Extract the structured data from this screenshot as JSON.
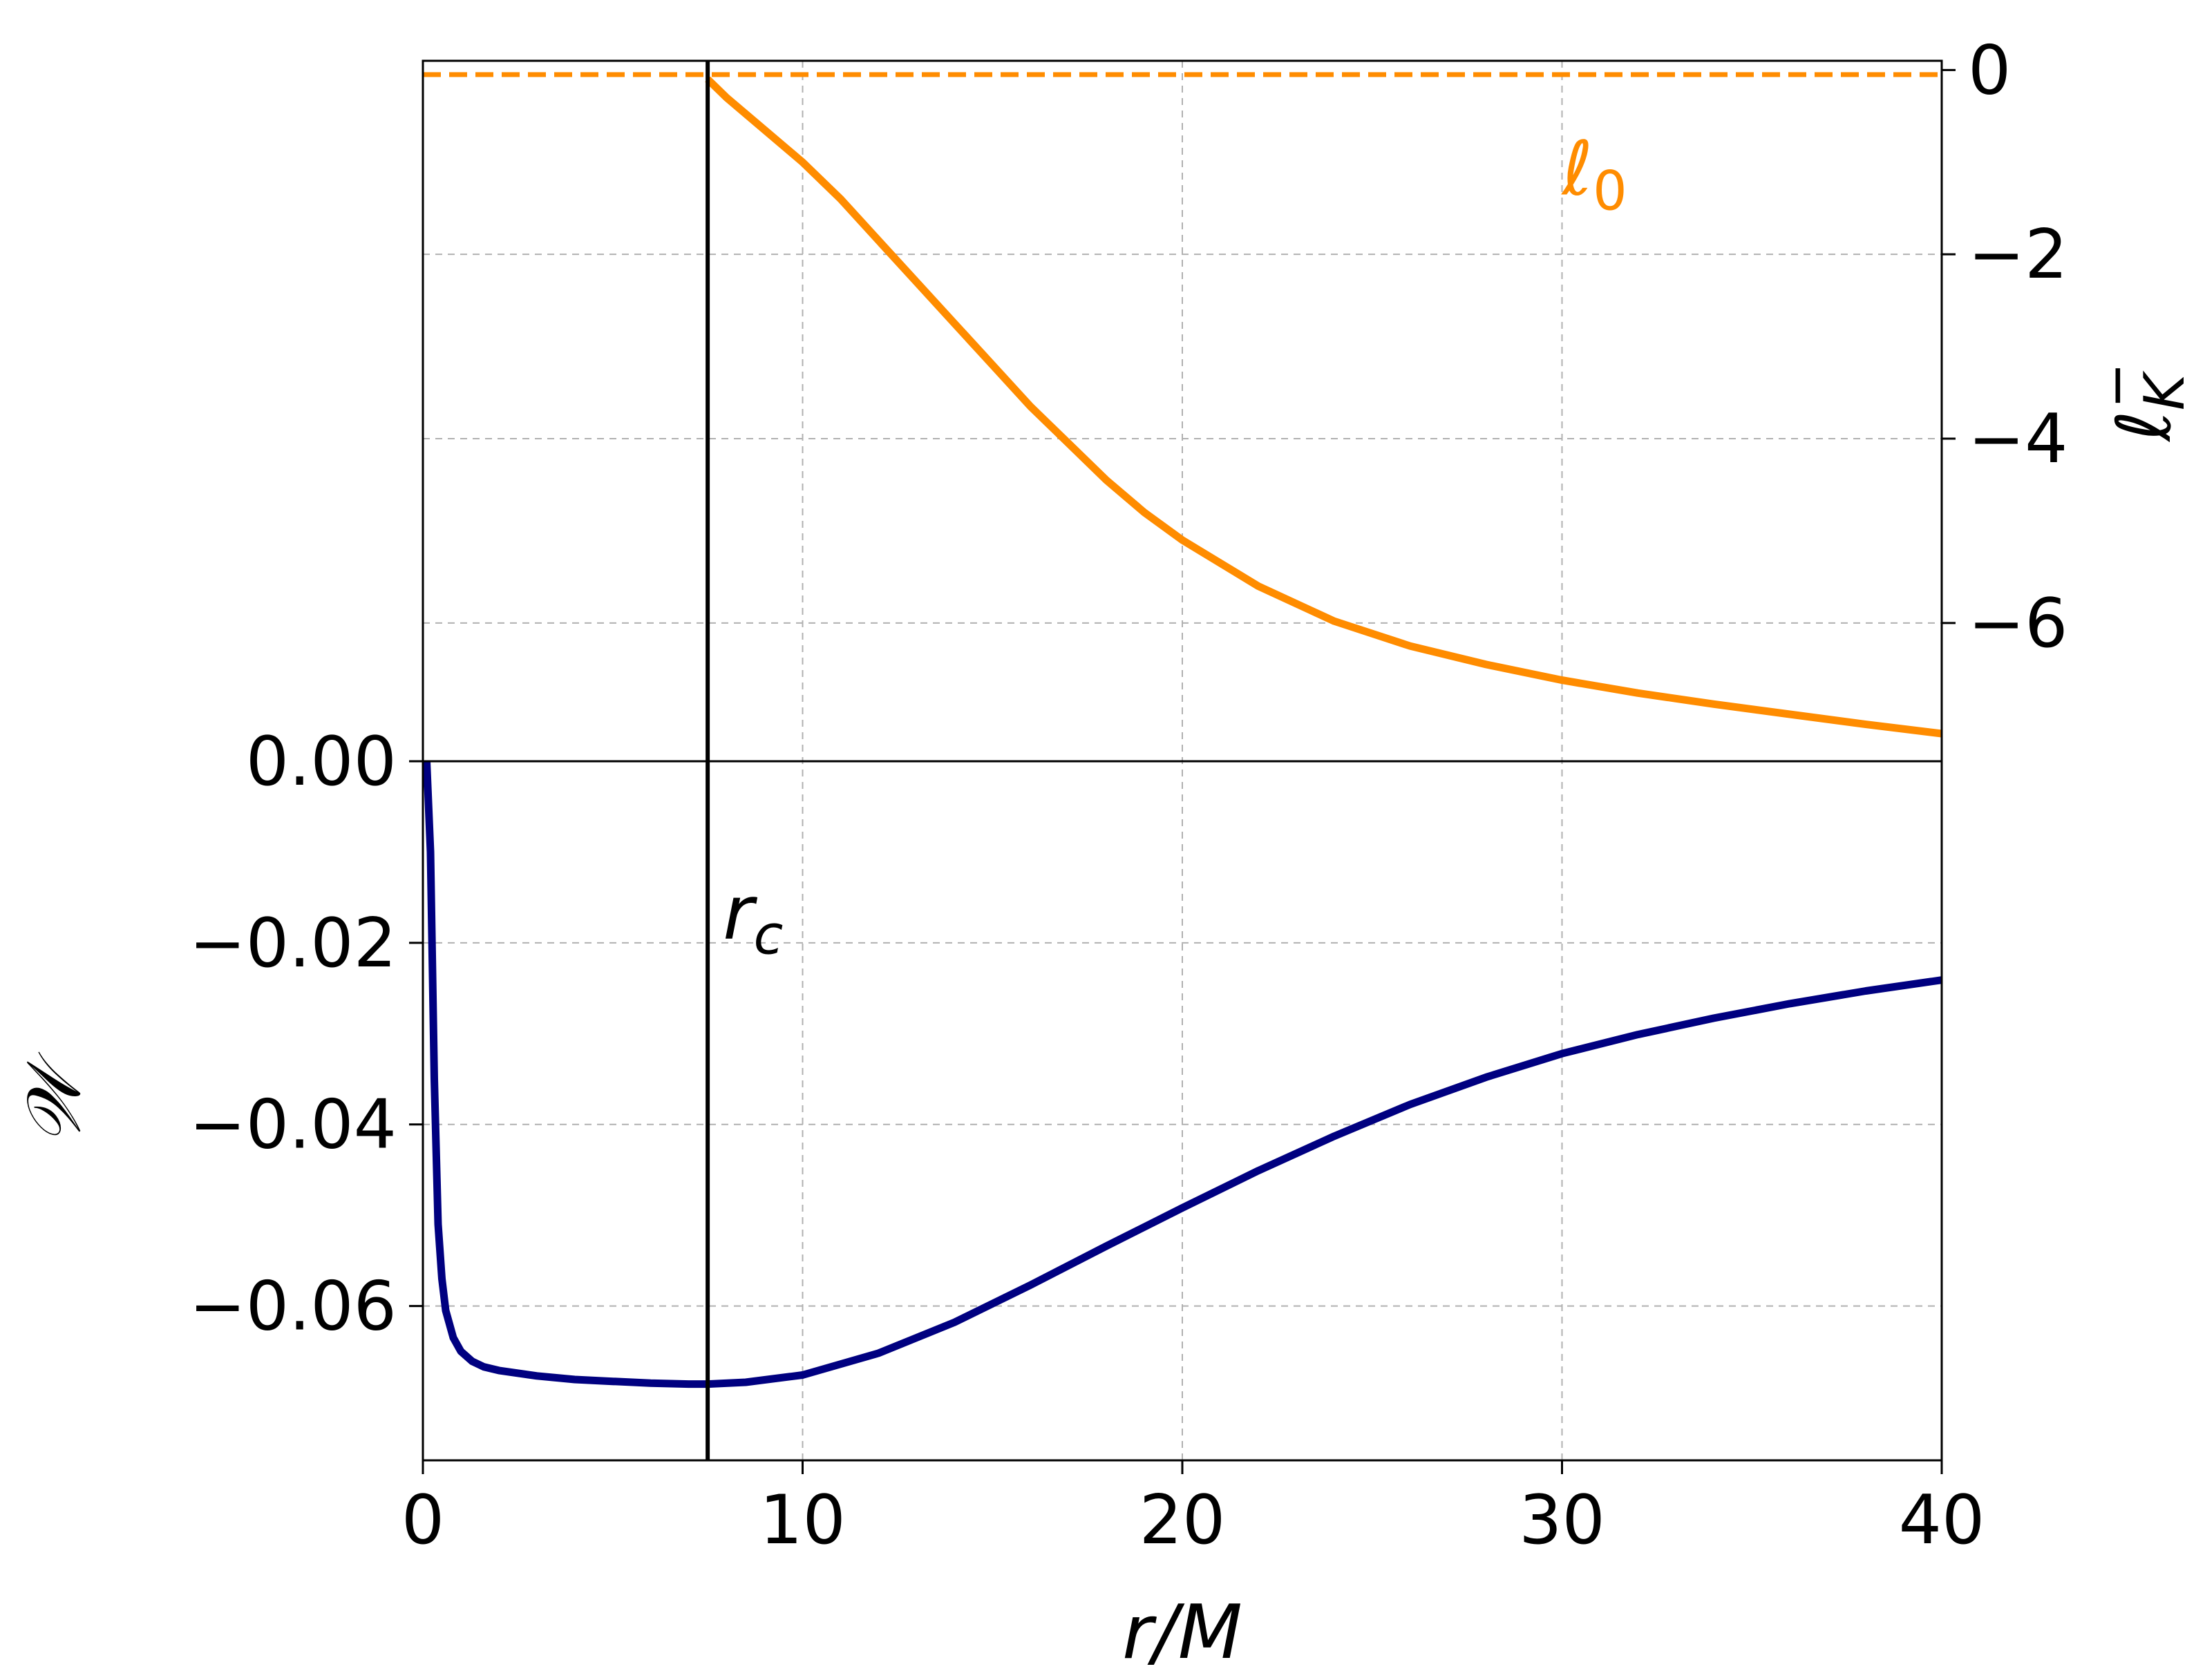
{
  "chart_data": {
    "type": "line",
    "xlabel": "r/M",
    "xlim": [
      0,
      40
    ],
    "xticks": [
      0,
      10,
      20,
      30,
      40
    ],
    "xtick_labels": [
      "0",
      "10",
      "20",
      "30",
      "40"
    ],
    "grid": true,
    "bottom_panel": {
      "ylabel": "𝒲",
      "ylim": [
        -0.077,
        0.0
      ],
      "yticks": [
        0.0,
        -0.02,
        -0.04,
        -0.06
      ],
      "ytick_labels": [
        "0.00",
        "−0.02",
        "−0.04",
        "−0.06"
      ],
      "series": [
        {
          "color": "#000080",
          "x": [
            0.1,
            0.2,
            0.3,
            0.4,
            0.5,
            0.6,
            0.8,
            1.0,
            1.3,
            1.6,
            2.0,
            3.0,
            4.0,
            5.0,
            6.0,
            7.0,
            7.5,
            8.5,
            10,
            12,
            14,
            16,
            18,
            20,
            22,
            24,
            26,
            28,
            30,
            32,
            34,
            36,
            38,
            40
          ],
          "y": [
            0.0,
            -0.01,
            -0.035,
            -0.051,
            -0.057,
            -0.0605,
            -0.0635,
            -0.065,
            -0.0661,
            -0.0667,
            -0.0671,
            -0.0677,
            -0.0681,
            -0.0683,
            -0.0685,
            -0.0686,
            -0.0686,
            -0.0684,
            -0.0676,
            -0.0652,
            -0.0618,
            -0.0577,
            -0.0534,
            -0.0492,
            -0.0451,
            -0.0413,
            -0.0378,
            -0.0348,
            -0.0322,
            -0.0301,
            -0.0283,
            -0.0267,
            -0.0253,
            -0.0241
          ]
        }
      ]
    },
    "top_panel": {
      "ylabel": "ℓ",
      "ylabel_sub": "K",
      "ylabel_sup": "−",
      "ylim": [
        -7.5,
        0.1
      ],
      "yticks": [
        0,
        -2,
        -4,
        -6
      ],
      "ytick_labels": [
        "0",
        "−2",
        "−4",
        "−6"
      ],
      "series": [
        {
          "color": "#FF8C00",
          "x": [
            7.5,
            8,
            9,
            10,
            11,
            12,
            13,
            14,
            15,
            16,
            17,
            18,
            19,
            20,
            22,
            24,
            26,
            28,
            30,
            32,
            34,
            36,
            38,
            40
          ],
          "y": [
            -0.1,
            -0.3,
            -0.65,
            -1.0,
            -1.4,
            -1.85,
            -2.3,
            -2.75,
            -3.2,
            -3.65,
            -4.05,
            -4.45,
            -4.8,
            -5.1,
            -5.6,
            -5.98,
            -6.25,
            -6.45,
            -6.62,
            -6.76,
            -6.88,
            -6.99,
            -7.1,
            -7.2
          ]
        }
      ],
      "reference_line": {
        "label": "ℓ",
        "label_sub": "0",
        "y": -0.05,
        "color": "#FF8C00",
        "style": "dashed"
      }
    },
    "vertical_line": {
      "x": 7.5,
      "label": "r",
      "label_sub": "c",
      "color": "#000000"
    }
  }
}
